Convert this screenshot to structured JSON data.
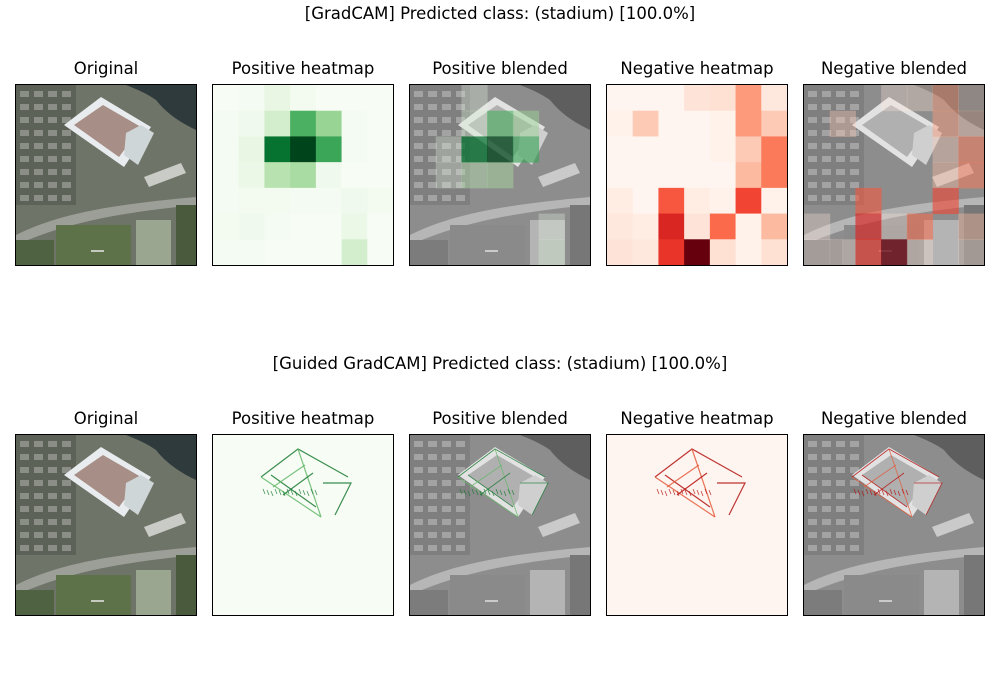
{
  "rows": [
    {
      "title": "[GradCAM] Predicted class: (stadium) [100.0%]",
      "panels": [
        {
          "title": "Original",
          "kind": "original"
        },
        {
          "title": "Positive heatmap",
          "kind": "grid_heatmap",
          "colormap": "greens",
          "grid": [
            [
              0.0,
              0.02,
              0.1,
              0.03,
              0.0,
              0.0,
              0.0
            ],
            [
              0.02,
              0.05,
              0.2,
              0.6,
              0.4,
              0.02,
              0.0
            ],
            [
              0.02,
              0.1,
              0.85,
              1.0,
              0.65,
              0.02,
              0.0
            ],
            [
              0.02,
              0.08,
              0.3,
              0.35,
              0.05,
              0.0,
              0.0
            ],
            [
              0.02,
              0.03,
              0.03,
              0.02,
              0.02,
              0.05,
              0.03
            ],
            [
              0.03,
              0.05,
              0.02,
              0.0,
              0.0,
              0.08,
              0.0
            ],
            [
              0.02,
              0.02,
              0.0,
              0.0,
              0.0,
              0.2,
              0.0
            ]
          ]
        },
        {
          "title": "Positive blended",
          "kind": "grid_blend",
          "colormap": "greens",
          "source": "Positive heatmap"
        },
        {
          "title": "Negative heatmap",
          "kind": "grid_heatmap",
          "colormap": "reds",
          "grid": [
            [
              0.0,
              0.0,
              0.0,
              0.1,
              0.12,
              0.35,
              0.08
            ],
            [
              0.02,
              0.2,
              0.0,
              0.0,
              0.02,
              0.35,
              0.2
            ],
            [
              0.0,
              0.0,
              0.0,
              0.0,
              0.02,
              0.2,
              0.45
            ],
            [
              0.0,
              0.0,
              0.0,
              0.0,
              0.0,
              0.25,
              0.45
            ],
            [
              0.05,
              0.0,
              0.55,
              0.05,
              0.02,
              0.6,
              0.02
            ],
            [
              0.08,
              0.05,
              0.7,
              0.1,
              0.5,
              0.02,
              0.25
            ],
            [
              0.1,
              0.08,
              0.65,
              1.0,
              0.12,
              0.02,
              0.12
            ]
          ]
        },
        {
          "title": "Negative blended",
          "kind": "grid_blend",
          "colormap": "reds",
          "source": "Negative heatmap"
        }
      ]
    },
    {
      "title": "[Guided GradCAM] Predicted class: (stadium) [100.0%]",
      "panels": [
        {
          "title": "Original",
          "kind": "original"
        },
        {
          "title": "Positive heatmap",
          "kind": "edge_heatmap",
          "colormap": "greens"
        },
        {
          "title": "Positive blended",
          "kind": "edge_blend",
          "colormap": "greens"
        },
        {
          "title": "Negative heatmap",
          "kind": "edge_heatmap",
          "colormap": "reds"
        },
        {
          "title": "Negative blended",
          "kind": "edge_blend",
          "colormap": "reds"
        }
      ]
    }
  ],
  "colors": {
    "greens_light": "#f7fcf5",
    "greens_dark": "#00441b",
    "reds_light": "#fff5f0",
    "reds_dark": "#67000d",
    "gray_overlay": "#9a9a9a"
  }
}
